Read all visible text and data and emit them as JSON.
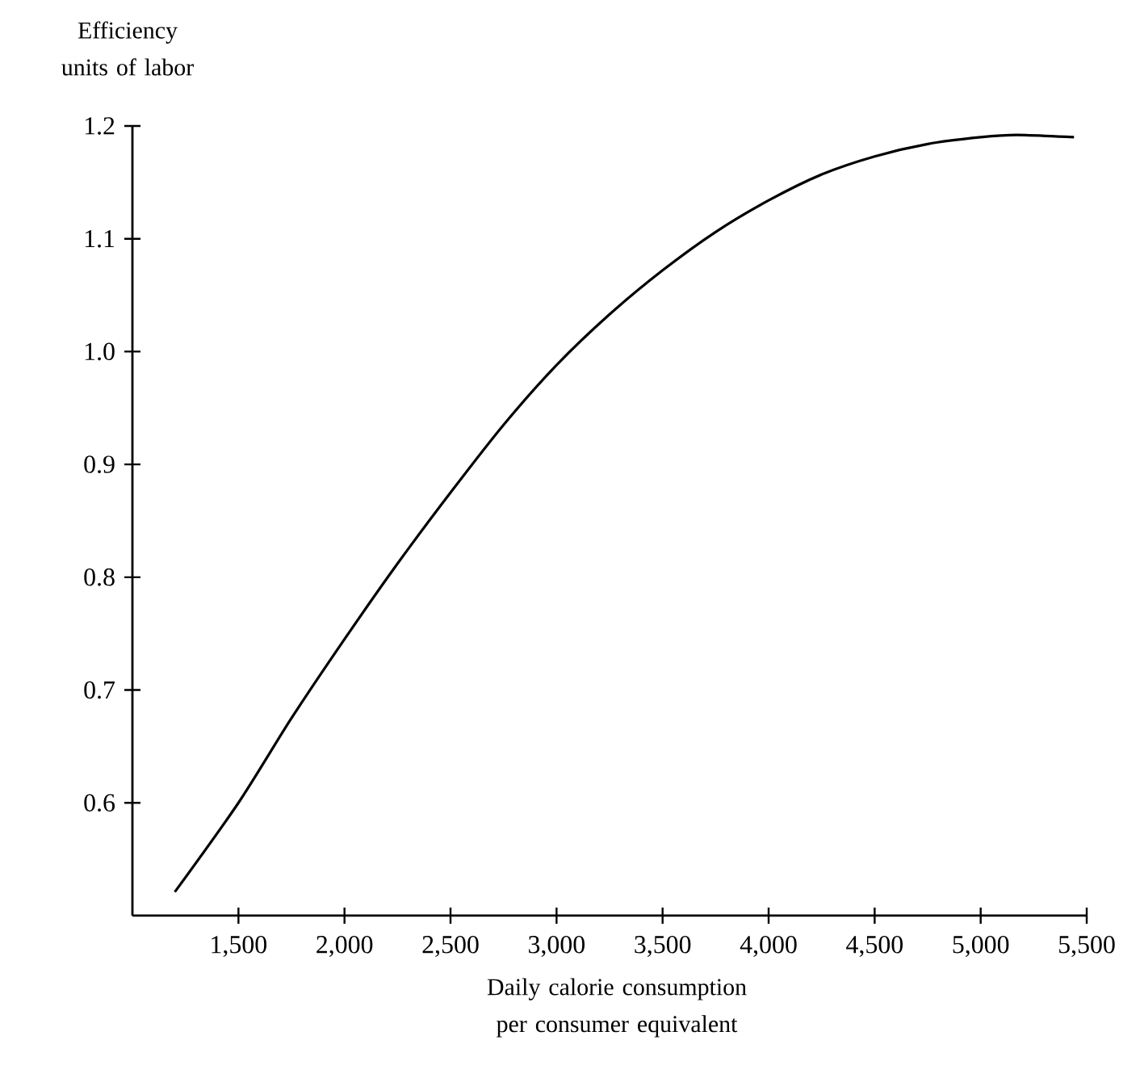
{
  "chart_data": {
    "type": "line",
    "xlabel": "Daily calorie consumption per consumer equivalent",
    "ylabel": "Efficiency units of labor",
    "x": [
      1200,
      1500,
      1750,
      2000,
      2250,
      2500,
      2750,
      3000,
      3250,
      3500,
      3750,
      4000,
      4250,
      4500,
      4750,
      5000,
      5170,
      5440
    ],
    "series": [
      {
        "color": "#000000",
        "values": [
          0.521,
          0.6,
          0.675,
          0.745,
          0.812,
          0.875,
          0.935,
          0.988,
          1.033,
          1.072,
          1.106,
          1.134,
          1.157,
          1.173,
          1.184,
          1.19,
          1.192,
          1.19
        ]
      }
    ],
    "xlim": [
      1000,
      5500
    ],
    "ylim": [
      0.5,
      1.2
    ],
    "xticks": [
      {
        "value": 1500,
        "label": "1,500"
      },
      {
        "value": 2000,
        "label": "2,000"
      },
      {
        "value": 2500,
        "label": "2,500"
      },
      {
        "value": 3000,
        "label": "3,000"
      },
      {
        "value": 3500,
        "label": "3,500"
      },
      {
        "value": 4000,
        "label": "4,000"
      },
      {
        "value": 4500,
        "label": "4,500"
      },
      {
        "value": 5000,
        "label": "5,000"
      },
      {
        "value": 5500,
        "label": "5,500"
      }
    ],
    "yticks": [
      {
        "value": 0.6,
        "label": "0.6"
      },
      {
        "value": 0.7,
        "label": "0.7"
      },
      {
        "value": 0.8,
        "label": "0.8"
      },
      {
        "value": 0.9,
        "label": "0.9"
      },
      {
        "value": 1.0,
        "label": "1.0"
      },
      {
        "value": 1.1,
        "label": "1.1"
      },
      {
        "value": 1.2,
        "label": "1.2"
      }
    ],
    "line_style": "solid"
  }
}
